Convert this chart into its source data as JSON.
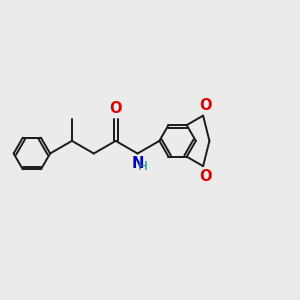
{
  "background_color": "#ebebeb",
  "bond_color": "#1a1a1a",
  "bond_width": 1.4,
  "dbo": 0.055,
  "atom_colors": {
    "O": "#e00000",
    "N": "#0000cc",
    "H": "#008888",
    "C": "#1a1a1a"
  },
  "font_size": 8.5,
  "figsize": [
    3.0,
    3.0
  ],
  "dpi": 100
}
